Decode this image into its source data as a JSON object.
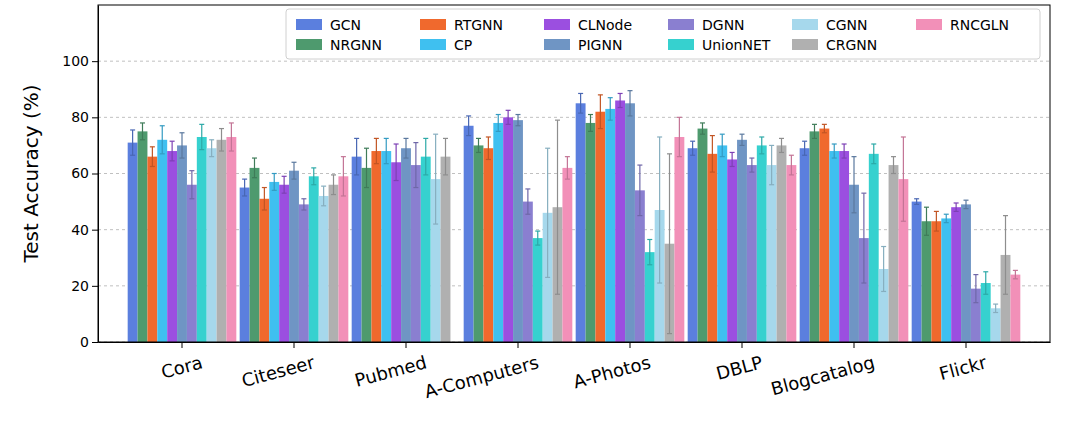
{
  "chart_data": {
    "type": "bar",
    "y_label": "Test Accuracy (%)",
    "categories": [
      "Cora",
      "Citeseer",
      "Pubmed",
      "A-Computers",
      "A-Photos",
      "DBLP",
      "Blogcatalog",
      "Flickr"
    ],
    "ylim": [
      0,
      120
    ],
    "yticks": [
      0,
      20,
      40,
      60,
      80,
      100
    ],
    "grid": true,
    "legend": "upper right",
    "series": [
      {
        "name": "GCN",
        "color": "#5b7fde",
        "values": [
          71,
          55,
          66,
          77,
          85,
          69,
          69,
          50
        ],
        "errors": [
          4.5,
          3,
          6.5,
          3.5,
          3.5,
          2.5,
          2.5,
          1
        ]
      },
      {
        "name": "NRGNN",
        "color": "#4e9a6e",
        "values": [
          75,
          62,
          62,
          70,
          78,
          76,
          75,
          43
        ],
        "errors": [
          3,
          3.5,
          7,
          2.5,
          3,
          2,
          2.5,
          5
        ]
      },
      {
        "name": "RTGNN",
        "color": "#f0692d",
        "values": [
          66,
          51,
          68,
          69,
          82,
          67,
          76,
          43
        ],
        "errors": [
          3.5,
          4,
          4.5,
          4,
          6,
          6.5,
          1.5,
          3.5
        ]
      },
      {
        "name": "CP",
        "color": "#3fc0f0",
        "values": [
          72,
          57,
          68,
          78,
          83,
          70,
          68,
          44
        ],
        "errors": [
          5,
          3,
          4.5,
          3,
          4,
          4,
          2.5,
          1.5
        ]
      },
      {
        "name": "CLNode",
        "color": "#9b4fe0",
        "values": [
          68,
          56,
          64,
          80,
          86,
          65,
          68,
          48
        ],
        "errors": [
          3.5,
          3,
          6.5,
          2.5,
          2.5,
          2.5,
          2.5,
          1.5
        ]
      },
      {
        "name": "PIGNN",
        "color": "#6f95c4",
        "values": [
          70,
          61,
          69,
          79,
          85,
          72,
          56,
          49
        ],
        "errors": [
          4.5,
          3,
          3.5,
          2,
          4.5,
          2,
          10,
          1.5
        ]
      },
      {
        "name": "DGNN",
        "color": "#8a7fd0",
        "values": [
          56,
          49,
          63,
          50,
          54,
          63,
          37,
          19
        ],
        "errors": [
          5,
          2,
          8,
          4.5,
          9,
          2.5,
          16,
          5
        ]
      },
      {
        "name": "UnionNET",
        "color": "#36d1cf",
        "values": [
          73,
          59,
          66,
          37,
          32,
          70,
          67,
          21
        ],
        "errors": [
          4.5,
          3,
          6.5,
          2.5,
          4.5,
          3,
          3.5,
          4
        ]
      },
      {
        "name": "CGNN",
        "color": "#a6d8ec",
        "values": [
          69,
          52,
          58,
          46,
          47,
          63,
          26,
          12
        ],
        "errors": [
          3,
          3.5,
          16,
          23,
          26,
          7,
          8,
          1.5
        ]
      },
      {
        "name": "CRGNN",
        "color": "#b0b0b0",
        "values": [
          72,
          56,
          66,
          48,
          35,
          70,
          63,
          31
        ],
        "errors": [
          4,
          3.5,
          6.5,
          31,
          32,
          2.5,
          3,
          14
        ]
      },
      {
        "name": "RNCGLN",
        "color": "#f290b8",
        "values": [
          73,
          59,
          null,
          62,
          73,
          63,
          58,
          24
        ],
        "errors": [
          5,
          7,
          null,
          4,
          7,
          3.5,
          15,
          1.5
        ]
      }
    ]
  }
}
